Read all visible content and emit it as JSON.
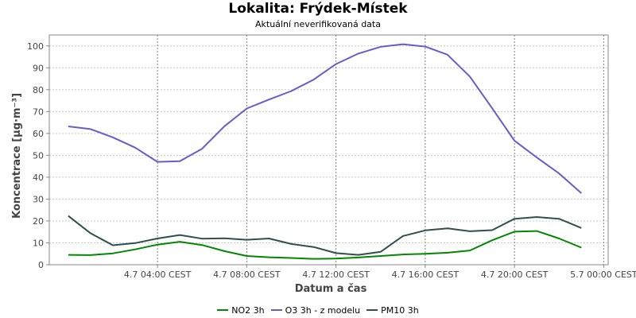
{
  "header": {
    "title": "Lokalita: Frýdek-Místek",
    "subtitle": "Aktuální neverifikovaná data"
  },
  "chart_data": {
    "type": "line",
    "xlabel": "Datum a čas",
    "ylabel": "Koncentrace [µg·m⁻³]",
    "ylim": [
      0,
      105
    ],
    "yticks": [
      0,
      10,
      20,
      30,
      40,
      50,
      60,
      70,
      80,
      90,
      100
    ],
    "x_ticks": [
      {
        "hour": 4,
        "label": "4.7 04:00 CEST"
      },
      {
        "hour": 8,
        "label": "4.7 08:00 CEST"
      },
      {
        "hour": 12,
        "label": "4.7 12:00 CEST"
      },
      {
        "hour": 16,
        "label": "4.7 16:00 CEST"
      },
      {
        "hour": 20,
        "label": "4.7 20:00 CEST"
      },
      {
        "hour": 24,
        "label": "5.7 00:00 CEST"
      }
    ],
    "xlim": [
      -0.85,
      24.2
    ],
    "x": [
      0,
      1,
      2,
      3,
      4,
      5,
      6,
      7,
      8,
      9,
      10,
      11,
      12,
      13,
      14,
      15,
      16,
      17,
      18,
      19,
      20,
      21,
      22,
      23,
      24
    ],
    "grid": true,
    "legend_position": "bottom",
    "series": [
      {
        "name": "NO2 3h",
        "color": "#008800",
        "values": [
          4.5,
          4.4,
          5.2,
          7.0,
          9.2,
          10.5,
          9.0,
          6.2,
          4.0,
          3.4,
          3.1,
          2.7,
          2.8,
          3.3,
          4.0,
          4.7,
          5.0,
          5.5,
          6.5,
          11.2,
          15.1,
          15.4,
          12.0,
          7.8,
          null
        ]
      },
      {
        "name": "O3 3h - z modelu",
        "color": "#6a5acd",
        "values": [
          63.2,
          62.0,
          58.2,
          53.5,
          47.0,
          47.3,
          53.0,
          63.3,
          71.4,
          75.5,
          79.4,
          84.6,
          91.7,
          96.5,
          99.6,
          100.8,
          99.7,
          96.0,
          86.0,
          71.5,
          56.7,
          49.0,
          41.7,
          32.7,
          null
        ]
      },
      {
        "name": "PM10 3h",
        "color": "#2f4f4f",
        "values": [
          22.3,
          14.4,
          8.9,
          9.9,
          12.0,
          13.6,
          11.9,
          12.1,
          11.4,
          12.0,
          9.5,
          8.1,
          5.3,
          4.5,
          5.9,
          13.1,
          15.7,
          16.6,
          15.3,
          15.8,
          21.0,
          21.8,
          21.0,
          16.8,
          null
        ]
      }
    ]
  }
}
